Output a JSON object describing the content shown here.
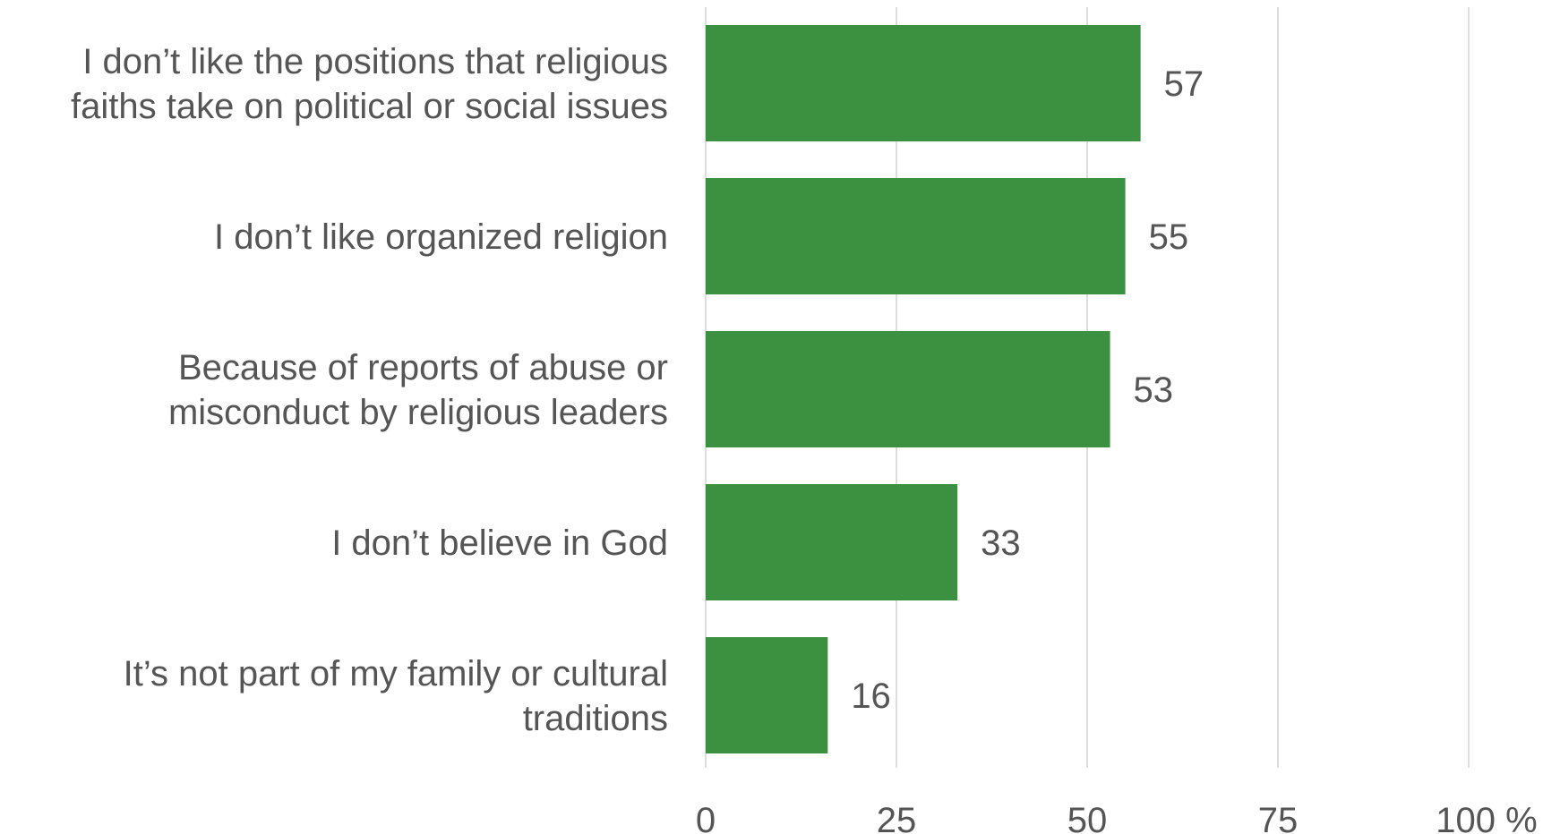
{
  "chart_data": {
    "type": "bar",
    "orientation": "horizontal",
    "categories": [
      [
        "I don’t like the positions that religious",
        "faiths take on political or social issues"
      ],
      [
        "I don’t like organized religion"
      ],
      [
        "Because of reports of abuse or",
        "misconduct by religious leaders"
      ],
      [
        "I don’t believe in God"
      ],
      [
        "It’s not part of my family or cultural",
        "traditions"
      ]
    ],
    "values": [
      57,
      55,
      53,
      33,
      16
    ],
    "value_labels": [
      "57",
      "55",
      "53",
      "33",
      "16"
    ],
    "xlim": [
      0,
      100
    ],
    "ticks": [
      0,
      25,
      50,
      75,
      100
    ],
    "tick_labels": [
      "0",
      "25",
      "50",
      "75",
      "100 %"
    ],
    "grid": true,
    "bar_color": "#3c9140",
    "grid_color": "#dddddd",
    "text_color": "#555555"
  }
}
